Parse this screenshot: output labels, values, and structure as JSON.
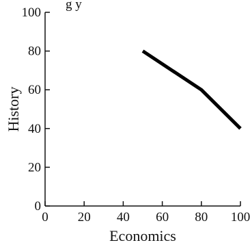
{
  "top_fragment": "g  y",
  "chart_data": {
    "type": "line",
    "title": "",
    "xlabel": "Economics",
    "ylabel": "History",
    "xlim": [
      0,
      100
    ],
    "ylim": [
      0,
      100
    ],
    "x_ticks": [
      0,
      20,
      40,
      60,
      80,
      100
    ],
    "y_ticks": [
      0,
      20,
      40,
      60,
      80,
      100
    ],
    "grid": false,
    "line_color": "#000000",
    "series": [
      {
        "x": [
          50,
          80,
          100
        ],
        "y": [
          80,
          60,
          40
        ]
      }
    ]
  }
}
